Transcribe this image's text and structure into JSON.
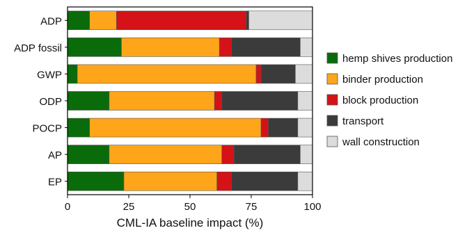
{
  "chart_data": {
    "type": "bar",
    "orientation": "horizontal",
    "stacked": true,
    "categories": [
      "ADP",
      "ADP fossil",
      "GWP",
      "ODP",
      "POCP",
      "AP",
      "EP"
    ],
    "series": [
      {
        "name": "hemp shives production",
        "color": "#0a6b0a",
        "values": [
          9,
          22,
          4,
          17,
          9,
          17,
          23
        ]
      },
      {
        "name": "binder production",
        "color": "#ffa51a",
        "values": [
          11,
          40,
          73,
          43,
          70,
          46,
          38
        ]
      },
      {
        "name": "block production",
        "color": "#d41217",
        "values": [
          53,
          5,
          2,
          3,
          3,
          5,
          6
        ]
      },
      {
        "name": "transport",
        "color": "#3b3b3b",
        "values": [
          1,
          28,
          14,
          31,
          12,
          27,
          27
        ]
      },
      {
        "name": "wall construction",
        "color": "#dcdcdc",
        "values": [
          26,
          5,
          7,
          6,
          6,
          5,
          6
        ]
      }
    ],
    "xlabel": "CML-IA baseline impact (%)",
    "ylabel": "",
    "xlim": [
      0,
      100
    ],
    "xticks": [
      0,
      25,
      50,
      75,
      100
    ],
    "legend_position": "right",
    "grid": false
  }
}
